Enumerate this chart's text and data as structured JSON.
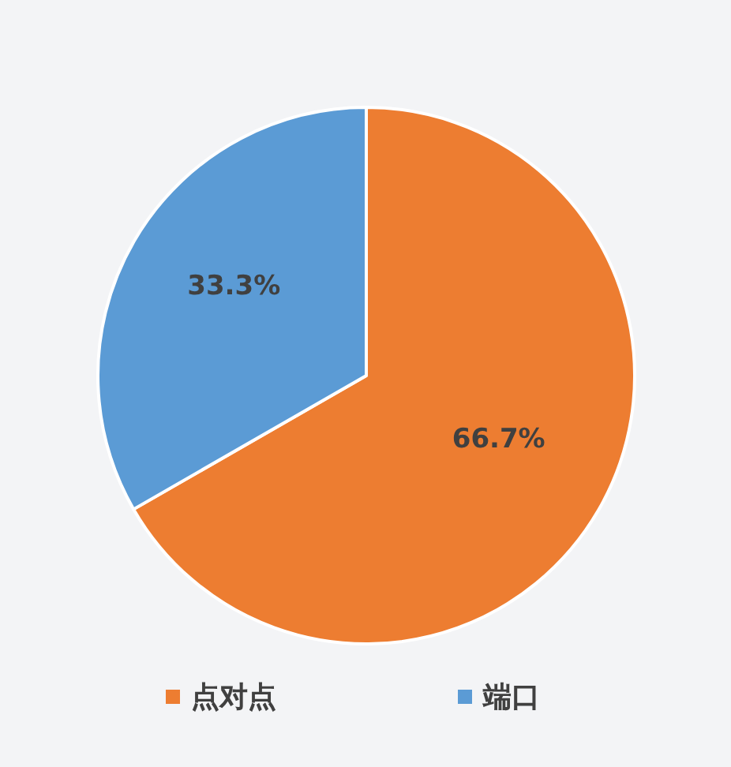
{
  "chart_data": {
    "type": "pie",
    "categories": [
      "点对点",
      "端口"
    ],
    "values": [
      66.7,
      33.3
    ],
    "value_labels": [
      "66.7%",
      "33.3%"
    ],
    "colors": [
      "#ed7d31",
      "#5b9bd5"
    ],
    "legend": "bottom"
  }
}
